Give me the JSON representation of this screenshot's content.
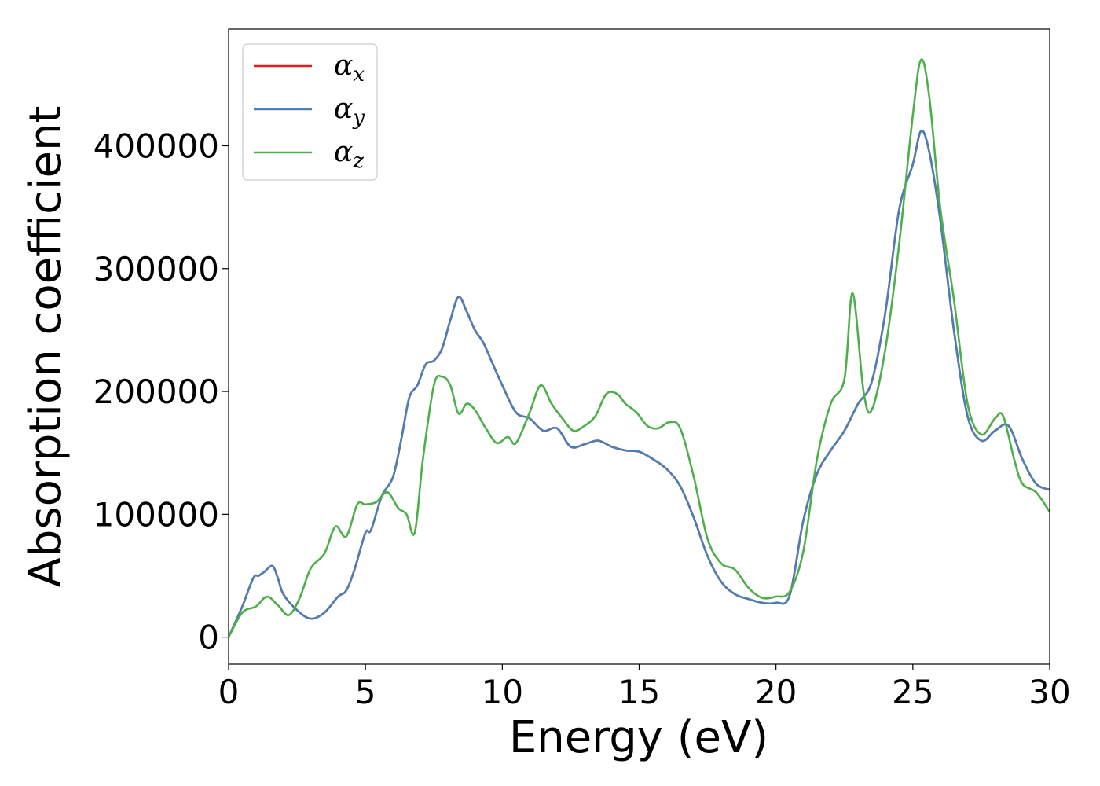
{
  "chart_data": {
    "type": "line",
    "title": "",
    "xlabel": "Energy (eV)",
    "ylabel": "Absorption coefficient",
    "xlim": [
      0,
      30
    ],
    "ylim": [
      -22000,
      495000
    ],
    "xticks": [
      0,
      5,
      10,
      15,
      20,
      25,
      30
    ],
    "xtick_labels": [
      "0",
      "5",
      "10",
      "15",
      "20",
      "25",
      "30"
    ],
    "yticks": [
      0,
      100000,
      200000,
      300000,
      400000
    ],
    "ytick_labels": [
      "0",
      "100000",
      "200000",
      "300000",
      "400000"
    ],
    "grid": false,
    "legend_position": "upper-left",
    "series": [
      {
        "name": "α_x",
        "legend_base": "α",
        "legend_sub": "x",
        "color": "#e41a1c",
        "x": [
          0,
          0.5,
          0.9,
          1.1,
          1.3,
          1.6,
          1.8,
          2.0,
          2.5,
          3.0,
          3.5,
          4.0,
          4.3,
          4.6,
          5.0,
          5.2,
          5.6,
          6.0,
          6.3,
          6.6,
          6.9,
          7.2,
          7.5,
          7.8,
          8.1,
          8.4,
          8.7,
          9.0,
          9.3,
          9.6,
          10.0,
          10.5,
          11.0,
          11.5,
          12.0,
          12.5,
          13.0,
          13.5,
          14.0,
          14.5,
          15.0,
          15.5,
          16.0,
          16.5,
          17.0,
          17.5,
          18.0,
          18.5,
          19.0,
          19.5,
          20.0,
          20.5,
          21.0,
          21.5,
          22.0,
          22.5,
          23.0,
          23.5,
          24.0,
          24.5,
          25.0,
          25.3,
          25.6,
          26.0,
          26.5,
          27.0,
          27.5,
          28.0,
          28.5,
          29.0,
          29.5,
          30.0
        ],
        "y": [
          0,
          25000,
          48000,
          50000,
          53000,
          58000,
          48000,
          35000,
          22000,
          15000,
          20000,
          33000,
          38000,
          55000,
          85000,
          87000,
          115000,
          130000,
          160000,
          195000,
          205000,
          222000,
          225000,
          235000,
          258000,
          277000,
          265000,
          250000,
          240000,
          225000,
          205000,
          183000,
          178000,
          168000,
          170000,
          155000,
          157000,
          160000,
          155000,
          152000,
          151000,
          145000,
          137000,
          123000,
          97000,
          66000,
          45000,
          35000,
          31000,
          28000,
          28000,
          34000,
          95000,
          133000,
          152000,
          168000,
          190000,
          208000,
          265000,
          348000,
          385000,
          412000,
          395000,
          340000,
          250000,
          180000,
          160000,
          168000,
          172000,
          145000,
          125000,
          120000
        ]
      },
      {
        "name": "α_y",
        "legend_base": "α",
        "legend_sub": "y",
        "color": "#4a7fb5",
        "x": [
          0,
          0.5,
          0.9,
          1.1,
          1.3,
          1.6,
          1.8,
          2.0,
          2.5,
          3.0,
          3.5,
          4.0,
          4.3,
          4.6,
          5.0,
          5.2,
          5.6,
          6.0,
          6.3,
          6.6,
          6.9,
          7.2,
          7.5,
          7.8,
          8.1,
          8.4,
          8.7,
          9.0,
          9.3,
          9.6,
          10.0,
          10.5,
          11.0,
          11.5,
          12.0,
          12.5,
          13.0,
          13.5,
          14.0,
          14.5,
          15.0,
          15.5,
          16.0,
          16.5,
          17.0,
          17.5,
          18.0,
          18.5,
          19.0,
          19.5,
          20.0,
          20.5,
          21.0,
          21.5,
          22.0,
          22.5,
          23.0,
          23.5,
          24.0,
          24.5,
          25.0,
          25.3,
          25.6,
          26.0,
          26.5,
          27.0,
          27.5,
          28.0,
          28.5,
          29.0,
          29.5,
          30.0
        ],
        "y": [
          0,
          25000,
          48000,
          50000,
          53000,
          58000,
          48000,
          35000,
          22000,
          15000,
          20000,
          33000,
          38000,
          55000,
          85000,
          87000,
          115000,
          130000,
          160000,
          195000,
          205000,
          222000,
          225000,
          235000,
          258000,
          277000,
          265000,
          250000,
          240000,
          225000,
          205000,
          183000,
          178000,
          168000,
          170000,
          155000,
          157000,
          160000,
          155000,
          152000,
          151000,
          145000,
          137000,
          123000,
          97000,
          66000,
          45000,
          35000,
          31000,
          28000,
          28000,
          34000,
          95000,
          133000,
          152000,
          168000,
          190000,
          208000,
          265000,
          348000,
          385000,
          412000,
          395000,
          340000,
          250000,
          180000,
          160000,
          168000,
          172000,
          145000,
          125000,
          120000
        ]
      },
      {
        "name": "α_z",
        "legend_base": "α",
        "legend_sub": "z",
        "color": "#4daf4a",
        "x": [
          0,
          0.5,
          1.0,
          1.4,
          1.8,
          2.2,
          2.6,
          3.0,
          3.5,
          3.9,
          4.3,
          4.7,
          5.0,
          5.4,
          5.8,
          6.2,
          6.5,
          6.8,
          7.1,
          7.5,
          7.8,
          8.1,
          8.4,
          8.7,
          9.0,
          9.4,
          9.8,
          10.2,
          10.5,
          11.0,
          11.4,
          11.8,
          12.2,
          12.6,
          13.0,
          13.4,
          13.8,
          14.2,
          14.5,
          14.9,
          15.3,
          15.7,
          16.1,
          16.5,
          17.0,
          17.5,
          18.0,
          18.5,
          19.0,
          19.5,
          20.0,
          20.5,
          21.0,
          21.5,
          22.0,
          22.5,
          22.8,
          23.2,
          23.5,
          24.0,
          24.5,
          25.0,
          25.3,
          25.6,
          26.0,
          26.5,
          27.0,
          27.5,
          28.0,
          28.3,
          28.7,
          29.0,
          29.5,
          30.0
        ],
        "y": [
          0,
          20000,
          25000,
          33000,
          26000,
          18000,
          32000,
          56000,
          68000,
          90000,
          82000,
          108000,
          108000,
          110000,
          118000,
          105000,
          100000,
          85000,
          145000,
          205000,
          212000,
          205000,
          182000,
          190000,
          185000,
          170000,
          158000,
          163000,
          158000,
          183000,
          205000,
          190000,
          178000,
          168000,
          172000,
          180000,
          198000,
          198000,
          190000,
          183000,
          172000,
          170000,
          175000,
          170000,
          130000,
          80000,
          60000,
          55000,
          40000,
          32000,
          33000,
          37000,
          70000,
          145000,
          190000,
          210000,
          280000,
          200000,
          185000,
          235000,
          320000,
          425000,
          470000,
          440000,
          350000,
          275000,
          190000,
          165000,
          178000,
          180000,
          145000,
          125000,
          118000,
          102000
        ]
      }
    ]
  }
}
